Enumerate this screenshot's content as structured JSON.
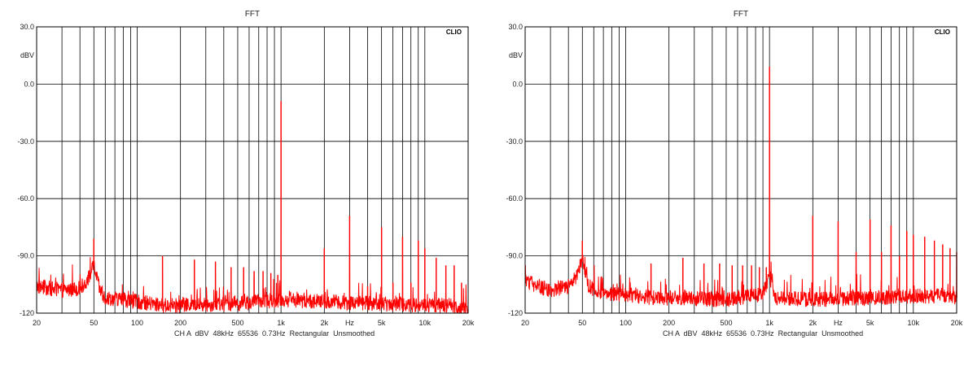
{
  "chart_data": [
    {
      "type": "line",
      "title": "FFT",
      "brand": "CLIO",
      "ylabel": "dBV",
      "xlabel": "Hz",
      "xscale": "log",
      "xlim": [
        20,
        20000
      ],
      "ylim": [
        -120,
        30
      ],
      "grid": true,
      "x_ticks": [
        "20",
        "50",
        "100",
        "200",
        "500",
        "1k",
        "2k",
        "5k",
        "10k",
        "20k"
      ],
      "y_ticks": [
        "30.0",
        "0.0",
        "-30.0",
        "-60.0",
        "-90.0",
        "-120"
      ],
      "footer": "CH A  dBV  48kHz  65536  0.73Hz  Rectangular  Unsmoothed",
      "line_color": "#ff0000",
      "noise_floor": {
        "x": [
          20,
          30,
          40,
          45,
          50,
          55,
          60,
          80,
          100,
          150,
          200,
          500,
          1000,
          2000,
          5000,
          10000,
          15000,
          20000
        ],
        "y": [
          -106,
          -108,
          -107,
          -103,
          -95,
          -108,
          -112,
          -113,
          -114,
          -116,
          -116,
          -115,
          -113,
          -114,
          -115,
          -116,
          -116,
          -118
        ]
      },
      "peaks": {
        "x": [
          50,
          150,
          250,
          350,
          450,
          550,
          650,
          750,
          850,
          950,
          1000,
          2000,
          3000,
          4000,
          5000,
          6000,
          7000,
          8000,
          9000,
          10000,
          12000,
          14000,
          16000,
          18000
        ],
        "y": [
          -81,
          -90,
          -92,
          -93,
          -96,
          -96,
          -98,
          -98,
          -99,
          -100,
          -9,
          -86,
          -69,
          -106,
          -75,
          -104,
          -80,
          -104,
          -82,
          -86,
          -91,
          -95,
          -95,
          -104
        ]
      }
    },
    {
      "type": "line",
      "title": "FFT",
      "brand": "CLIO",
      "ylabel": "dBV",
      "xlabel": "Hz",
      "xscale": "log",
      "xlim": [
        20,
        20000
      ],
      "ylim": [
        -120,
        30
      ],
      "grid": true,
      "x_ticks": [
        "20",
        "50",
        "100",
        "200",
        "500",
        "1k",
        "2k",
        "5k",
        "10k",
        "20k"
      ],
      "y_ticks": [
        "30.0",
        "0.0",
        "-30.0",
        "-60.0",
        "-90.0",
        "-120"
      ],
      "footer": "CH A  dBV  48kHz  65536  0.73Hz  Rectangular  Unsmoothed",
      "line_color": "#ff0000",
      "noise_floor": {
        "x": [
          20,
          25,
          30,
          40,
          45,
          50,
          55,
          60,
          80,
          100,
          150,
          200,
          500,
          900,
          1000,
          1100,
          2000,
          5000,
          10000,
          15000,
          20000
        ],
        "y": [
          -103,
          -106,
          -108,
          -106,
          -102,
          -92,
          -105,
          -108,
          -110,
          -110,
          -112,
          -112,
          -113,
          -110,
          -100,
          -112,
          -113,
          -112,
          -111,
          -111,
          -112
        ]
      },
      "peaks": {
        "x": [
          50,
          150,
          250,
          350,
          450,
          550,
          650,
          750,
          850,
          950,
          1000,
          2000,
          3000,
          4000,
          5000,
          6000,
          7000,
          8000,
          9000,
          10000,
          12000,
          14000,
          16000,
          18000,
          20000
        ],
        "y": [
          -82,
          -94,
          -91,
          -94,
          -94,
          -95,
          -95,
          -95,
          -96,
          -96,
          9,
          -69,
          -72,
          -88,
          -71,
          -88,
          -74,
          -90,
          -77,
          -79,
          -80,
          -82,
          -84,
          -86,
          -88
        ]
      }
    }
  ]
}
